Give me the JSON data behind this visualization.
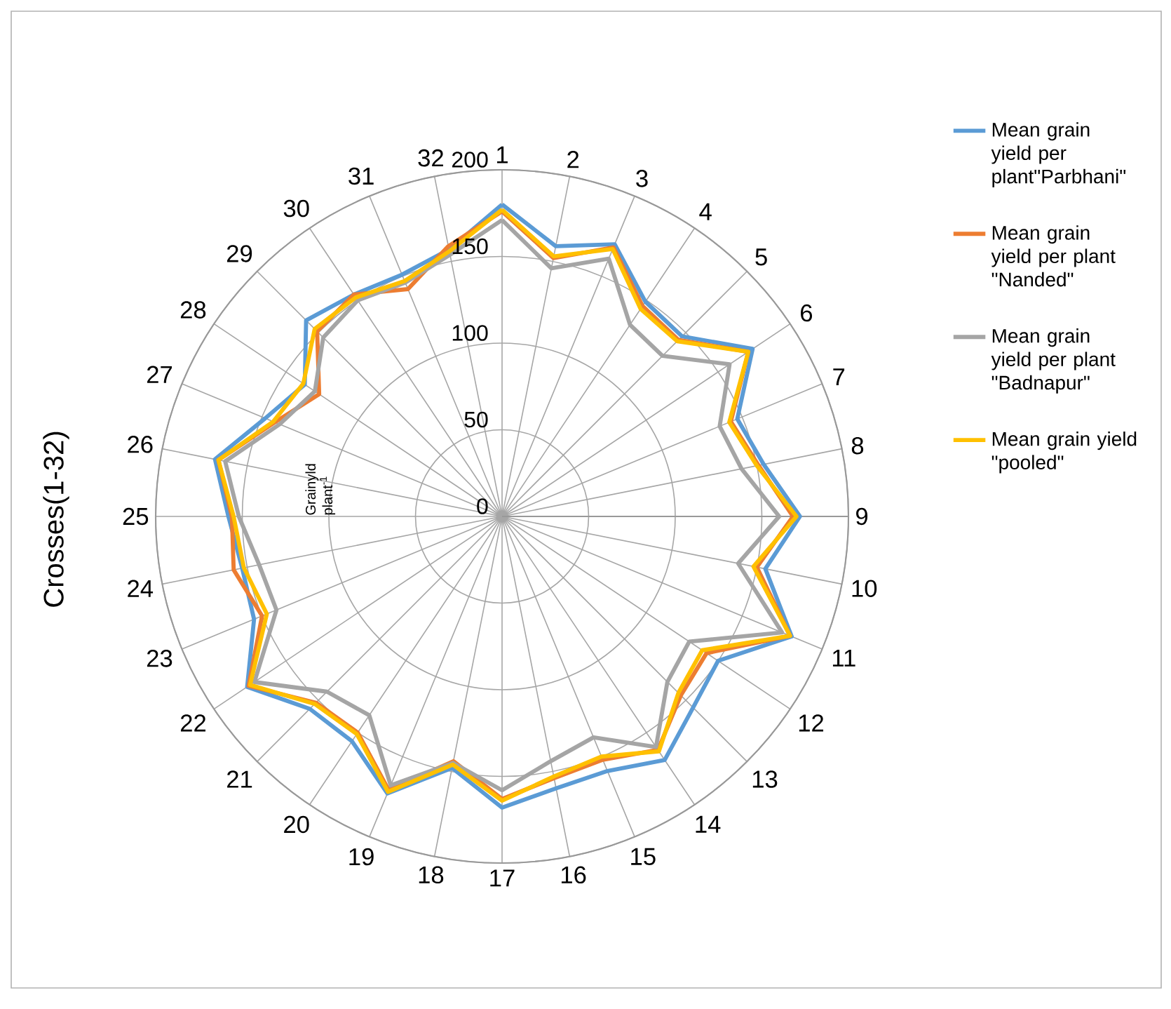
{
  "chart_data": {
    "type": "radar",
    "ylabel": "Crosses(1-32)",
    "annotations": [
      "Grainyld plant$^{-1}$"
    ],
    "categories": [
      "1",
      "2",
      "3",
      "4",
      "5",
      "6",
      "7",
      "8",
      "9",
      "10",
      "11",
      "12",
      "13",
      "14",
      "15",
      "16",
      "17",
      "18",
      "19",
      "20",
      "21",
      "22",
      "23",
      "24",
      "25",
      "26",
      "27",
      "28",
      "29",
      "30",
      "31",
      "32"
    ],
    "series": [
      {
        "name": "Mean grain yield per plant\"Parbhani\"",
        "color": "#5b9bd5",
        "values": [
          180,
          159,
          170,
          149,
          147,
          174,
          147,
          154,
          172,
          155,
          181,
          150,
          156,
          169,
          159,
          160,
          168,
          148,
          173,
          156,
          157,
          177,
          155,
          153,
          158,
          169,
          148,
          137,
          160,
          154,
          151,
          157
        ]
      },
      {
        "name": "Mean grain yield per plant \"Nanded\"",
        "color": "#ed7d31",
        "values": [
          176,
          152,
          168,
          146,
          144,
          171,
          143,
          151,
          168,
          150,
          180,
          142,
          146,
          162,
          152,
          154,
          163,
          144,
          171,
          150,
          152,
          176,
          150,
          158,
          156,
          167,
          142,
          127,
          151,
          154,
          142,
          159
        ]
      },
      {
        "name": "Mean grain yield per plant \"Badnapur\"",
        "color": "#a5a5a5",
        "values": [
          171,
          146,
          161,
          133,
          131,
          158,
          136,
          141,
          160,
          139,
          175,
          130,
          135,
          160,
          138,
          144,
          158,
          145,
          168,
          138,
          143,
          172,
          141,
          143,
          152,
          163,
          139,
          130,
          146,
          150,
          146,
          154
        ]
      },
      {
        "name": "Mean grain yield \"pooled\"",
        "color": "#ffc000",
        "values": [
          177,
          153,
          167,
          144,
          143,
          171,
          142,
          150,
          170,
          148,
          180,
          139,
          144,
          163,
          150,
          153,
          164,
          146,
          172,
          151,
          153,
          175,
          147,
          152,
          155,
          167,
          143,
          138,
          153,
          152,
          147,
          156
        ]
      }
    ],
    "ylim": [
      0,
      200
    ],
    "yticks": [
      0,
      50,
      100,
      150,
      200
    ],
    "grid": true,
    "legend": "right",
    "marker": "none"
  }
}
